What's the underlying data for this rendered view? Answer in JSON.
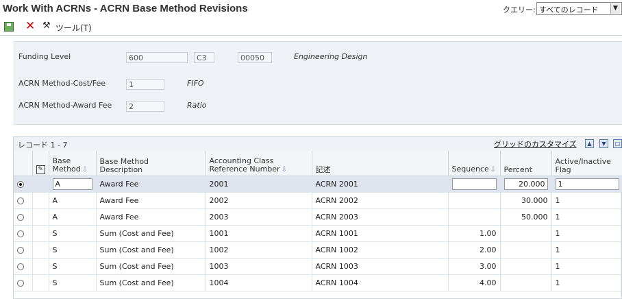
{
  "window": {
    "title": "Work With ACRNs - ACRN Base Method Revisions"
  },
  "query": {
    "label": "クエリー:",
    "value": "すべてのレコード"
  },
  "toolbar": {
    "tools_label": "ツール(T)"
  },
  "form": {
    "funding_level": {
      "label": "Funding Level",
      "value1": "600",
      "value2": "C3",
      "value3": "00050",
      "description": "Engineering Design"
    },
    "cost_fee": {
      "label": "ACRN Method-Cost/Fee",
      "value": "1",
      "description": "FIFO"
    },
    "award_fee": {
      "label": "ACRN Method-Award Fee",
      "value": "2",
      "description": "Ratio"
    }
  },
  "grid": {
    "records": "レコード 1 - 7",
    "customize": "グリッドのカスタマイズ",
    "headers": {
      "base_method": [
        "Base",
        "Method"
      ],
      "description": [
        "Base Method",
        "Description"
      ],
      "accounting": [
        "Accounting Class",
        "Reference Number"
      ],
      "kijutsu": "記述",
      "sequence": "Sequence",
      "percent": "Percent",
      "active": [
        "Active/Inactive",
        "Flag"
      ]
    },
    "rows": [
      {
        "method": "A",
        "desc": "Award Fee",
        "acct": "2001",
        "kijutsu": "ACRN 2001",
        "sequence": "",
        "percent": "20.000",
        "flag": "1"
      },
      {
        "method": "A",
        "desc": "Award Fee",
        "acct": "2002",
        "kijutsu": "ACRN 2002",
        "sequence": "",
        "percent": "30.000",
        "flag": "1"
      },
      {
        "method": "A",
        "desc": "Award Fee",
        "acct": "2003",
        "kijutsu": "ACRN 2003",
        "sequence": "",
        "percent": "50.000",
        "flag": "1"
      },
      {
        "method": "S",
        "desc": "Sum (Cost and Fee)",
        "acct": "1001",
        "kijutsu": "ACRN 1001",
        "sequence": "1.00",
        "percent": "",
        "flag": "1"
      },
      {
        "method": "S",
        "desc": "Sum (Cost and Fee)",
        "acct": "1002",
        "kijutsu": "ACRN 1002",
        "sequence": "2.00",
        "percent": "",
        "flag": "1"
      },
      {
        "method": "S",
        "desc": "Sum (Cost and Fee)",
        "acct": "1003",
        "kijutsu": "ACRN 1003",
        "sequence": "3.00",
        "percent": "",
        "flag": "1"
      },
      {
        "method": "S",
        "desc": "Sum (Cost and Fee)",
        "acct": "1004",
        "kijutsu": "ACRN 1004",
        "sequence": "4.00",
        "percent": "",
        "flag": "1"
      }
    ]
  }
}
